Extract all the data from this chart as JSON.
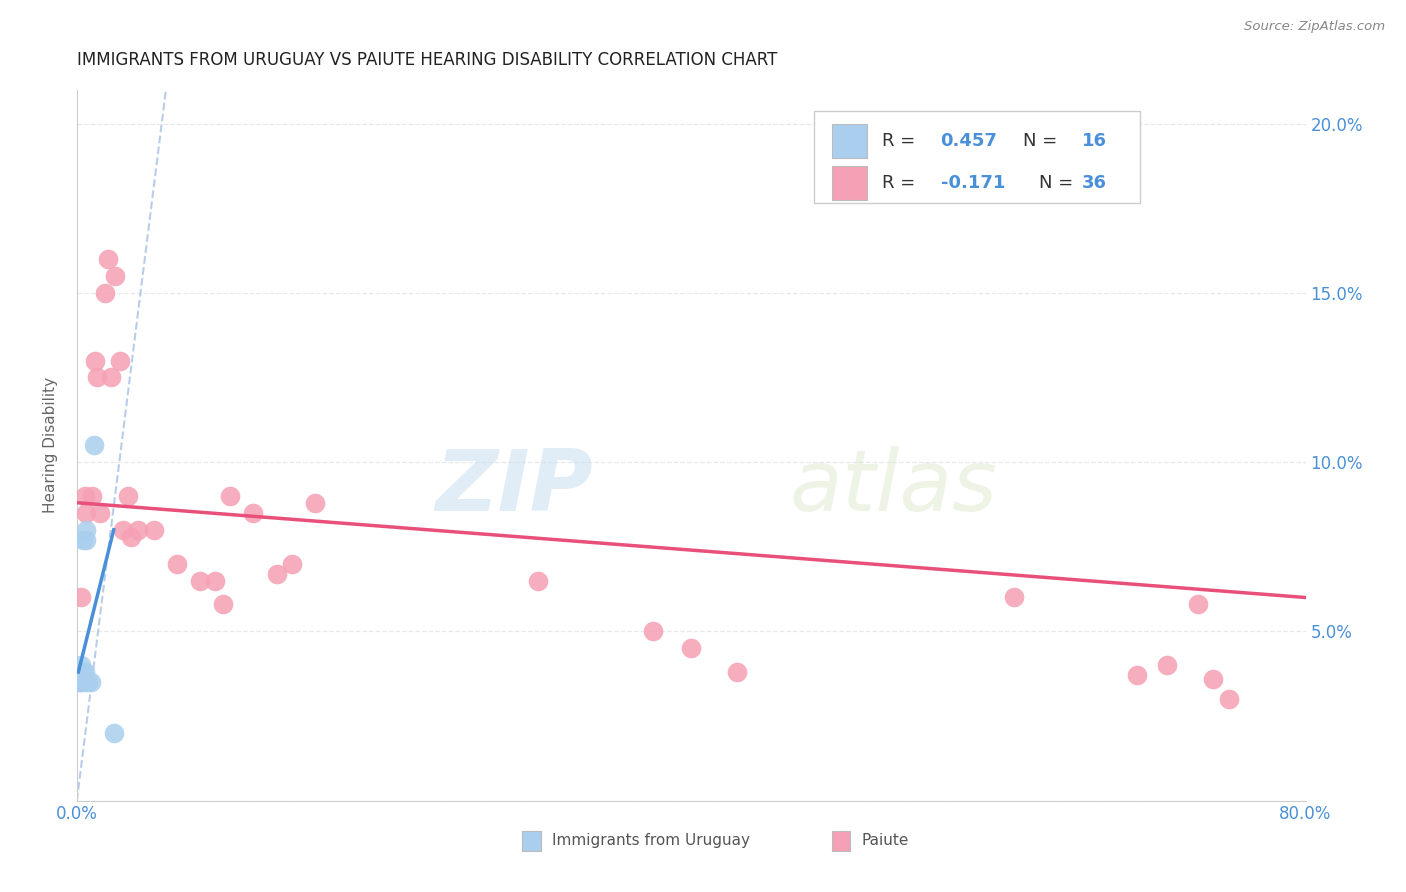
{
  "title": "IMMIGRANTS FROM URUGUAY VS PAIUTE HEARING DISABILITY CORRELATION CHART",
  "source": "Source: ZipAtlas.com",
  "ylabel": "Hearing Disability",
  "xlim": [
    0.0,
    0.8
  ],
  "ylim": [
    0.0,
    0.21
  ],
  "x_tick_positions": [
    0.0,
    0.1,
    0.2,
    0.3,
    0.4,
    0.5,
    0.6,
    0.7,
    0.8
  ],
  "x_tick_labels": [
    "0.0%",
    "",
    "",
    "",
    "",
    "",
    "",
    "",
    "80.0%"
  ],
  "y_tick_positions": [
    0.0,
    0.05,
    0.1,
    0.15,
    0.2
  ],
  "y_tick_labels_right": [
    "",
    "5.0%",
    "10.0%",
    "15.0%",
    "20.0%"
  ],
  "watermark_zip": "ZIP",
  "watermark_atlas": "atlas",
  "blue_color": "#aacfee",
  "pink_color": "#f5a0b4",
  "blue_line_color": "#4a90d9",
  "pink_line_color": "#e8507a",
  "dashed_line_color": "#b0c8e8",
  "title_color": "#222222",
  "source_color": "#888888",
  "axis_label_color": "#4a90d9",
  "grid_color": "#e8e8e8",
  "uruguay_scatter_x": [
    0.001,
    0.002,
    0.002,
    0.003,
    0.003,
    0.003,
    0.004,
    0.004,
    0.005,
    0.005,
    0.006,
    0.006,
    0.007,
    0.009,
    0.011,
    0.024
  ],
  "uruguay_scatter_y": [
    0.035,
    0.035,
    0.038,
    0.035,
    0.037,
    0.04,
    0.038,
    0.077,
    0.038,
    0.035,
    0.077,
    0.08,
    0.035,
    0.035,
    0.105,
    0.02
  ],
  "paiute_scatter_x": [
    0.003,
    0.005,
    0.006,
    0.01,
    0.012,
    0.013,
    0.015,
    0.018,
    0.02,
    0.022,
    0.025,
    0.028,
    0.03,
    0.033,
    0.035,
    0.04,
    0.05,
    0.065,
    0.08,
    0.09,
    0.095,
    0.1,
    0.115,
    0.13,
    0.14,
    0.155,
    0.3,
    0.375,
    0.4,
    0.43,
    0.61,
    0.69,
    0.71,
    0.73,
    0.74,
    0.75
  ],
  "paiute_scatter_y": [
    0.06,
    0.09,
    0.085,
    0.09,
    0.13,
    0.125,
    0.085,
    0.15,
    0.16,
    0.125,
    0.155,
    0.13,
    0.08,
    0.09,
    0.078,
    0.08,
    0.08,
    0.07,
    0.065,
    0.065,
    0.058,
    0.09,
    0.085,
    0.067,
    0.07,
    0.088,
    0.065,
    0.05,
    0.045,
    0.038,
    0.06,
    0.037,
    0.04,
    0.058,
    0.036,
    0.03
  ],
  "pink_line_x0": 0.0,
  "pink_line_y0": 0.088,
  "pink_line_x1": 0.8,
  "pink_line_y1": 0.06,
  "blue_line_x0": 0.001,
  "blue_line_y0": 0.038,
  "blue_line_x1": 0.024,
  "blue_line_y1": 0.08,
  "dash_line_x0": 0.0,
  "dash_line_y0": 0.0,
  "dash_line_x1": 0.058,
  "dash_line_y1": 0.21
}
